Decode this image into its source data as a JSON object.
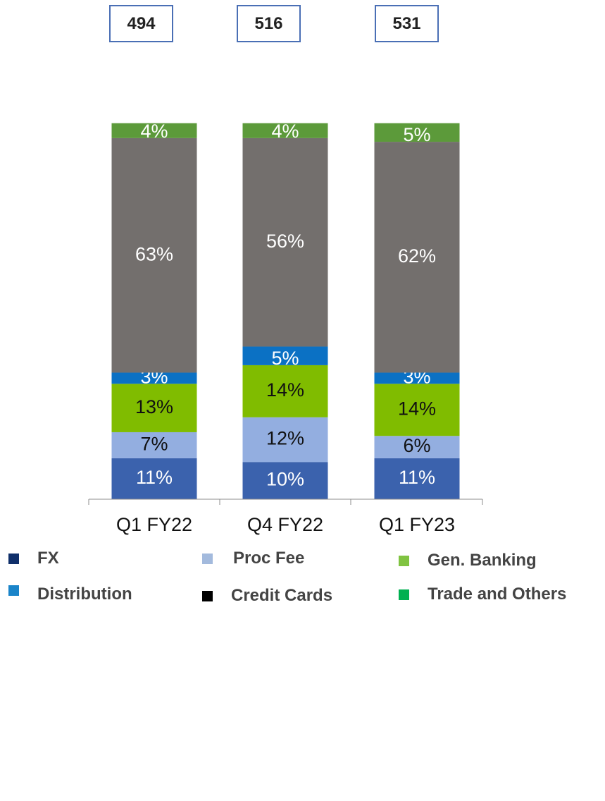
{
  "totals": [
    "494",
    "516",
    "531"
  ],
  "chart_data": {
    "type": "bar",
    "stacked": true,
    "categories": [
      "Q1 FY22",
      "Q4 FY22",
      "Q1 FY23"
    ],
    "series": [
      {
        "name": "",
        "color": "#3b62ad",
        "label_color": "#ffffff",
        "values": [
          11,
          10,
          11
        ],
        "labels": [
          "11%",
          "10%",
          "11%"
        ]
      },
      {
        "name": "",
        "color": "#93aee0",
        "label_color": "#111111",
        "values": [
          7,
          12,
          6
        ],
        "labels": [
          "7%",
          "12%",
          "6%"
        ]
      },
      {
        "name": "",
        "color": "#80bc00",
        "label_color": "#111111",
        "values": [
          13,
          14,
          14
        ],
        "labels": [
          "13%",
          "14%",
          "14%"
        ]
      },
      {
        "name": "",
        "color": "#0b71c4",
        "label_color": "#ffffff",
        "values": [
          3,
          5,
          3
        ],
        "labels": [
          "3%",
          "5%",
          "3%"
        ]
      },
      {
        "name": "",
        "color": "#736f6d",
        "label_color": "#ffffff",
        "values": [
          63,
          56,
          62
        ],
        "labels": [
          "63%",
          "56%",
          "62%"
        ]
      },
      {
        "name": "",
        "color": "#5c9a3a",
        "label_color": "#ffffff",
        "values": [
          4,
          4,
          5
        ],
        "labels": [
          "4%",
          "4%",
          "5%"
        ]
      }
    ]
  },
  "legend": [
    {
      "label": "FX",
      "color": "#0f2f6a"
    },
    {
      "label": "Proc Fee",
      "color": "#a3badd"
    },
    {
      "label": "Gen. Banking",
      "color": "#80c341"
    },
    {
      "label": "Distribution",
      "color": "#1a84c9"
    },
    {
      "label": "Credit Cards",
      "color": "#000000"
    },
    {
      "label": "Trade and Others",
      "color": "#00b050"
    }
  ]
}
